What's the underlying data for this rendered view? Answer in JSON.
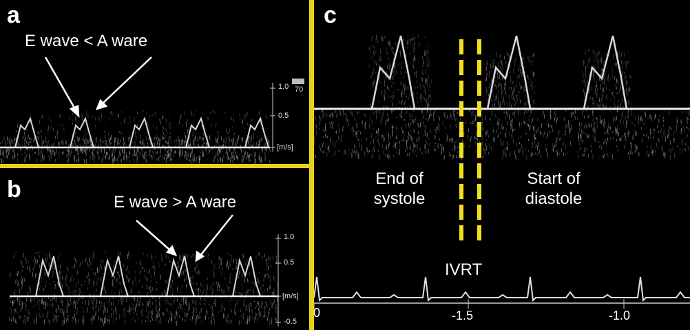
{
  "panels": {
    "a": {
      "letter": "a",
      "annotation": "E wave < A ware",
      "scale_labels": [
        "1.0",
        "70",
        "0.5",
        "[m/s]"
      ]
    },
    "b": {
      "letter": "b",
      "annotation": "E wave > A ware",
      "scale_labels": [
        "1.0",
        "0.5",
        "[m/s]",
        "-0.5"
      ]
    },
    "c": {
      "letter": "c",
      "label_left": [
        "End of",
        "systole"
      ],
      "label_right": [
        "Start of",
        "diastole"
      ],
      "label_interval": "IVRT",
      "axis_labels": [
        "0",
        "-1.5",
        "-1.0"
      ]
    }
  },
  "colors": {
    "separator": "#e7d219",
    "dashed_marker": "#f2e21a",
    "trace": "#d8d8d8",
    "baseline": "#f0f0f0",
    "text": "#ffffff"
  }
}
